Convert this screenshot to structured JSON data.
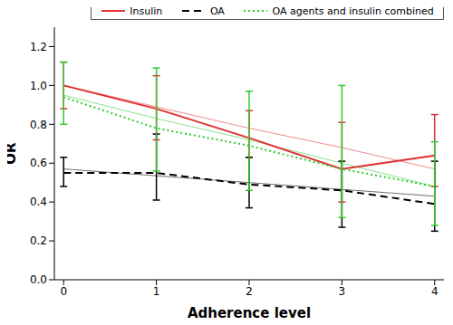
{
  "chart_data": {
    "type": "line",
    "x_label": "Adherence level",
    "y_label": "OR",
    "x": [
      0,
      1,
      2,
      3,
      4
    ],
    "xlim": [
      -0.1,
      4.1
    ],
    "xticks": [
      0,
      1,
      2,
      3,
      4
    ],
    "ylim": [
      0,
      1.3
    ],
    "yticks": [
      {
        "value": 0,
        "label": "0.0"
      },
      {
        "value": 0.2,
        "label": "0.2"
      },
      {
        "value": 0.4,
        "label": "0.4"
      },
      {
        "value": 0.6,
        "label": "0.6"
      },
      {
        "value": 0.8,
        "label": "0.8"
      },
      {
        "value": 1,
        "label": "1.0"
      },
      {
        "value": 1.2,
        "label": "1.2"
      }
    ],
    "legend": "top",
    "series": [
      {
        "name": "Insulin",
        "color": "#e03030",
        "line_style": "solid",
        "values": [
          1.0,
          0.88,
          0.73,
          0.57,
          0.64
        ],
        "ci": [
          [
            0.88,
            1.12
          ],
          [
            0.72,
            1.05
          ],
          [
            0.63,
            0.87
          ],
          [
            0.4,
            0.81
          ],
          [
            0.48,
            0.85
          ]
        ],
        "trend": [
          1.0,
          0.89,
          0.78,
          0.68,
          0.57
        ]
      },
      {
        "name": "OA",
        "color": "#000000",
        "line_style": "dashed",
        "values": [
          0.55,
          0.55,
          0.49,
          0.46,
          0.39
        ],
        "ci": [
          [
            0.48,
            0.63
          ],
          [
            0.41,
            0.75
          ],
          [
            0.37,
            0.63
          ],
          [
            0.27,
            0.61
          ],
          [
            0.25,
            0.61
          ]
        ],
        "trend": [
          0.57,
          0.535,
          0.5,
          0.465,
          0.43
        ]
      },
      {
        "name": "OA agents and insulin combined",
        "color": "#2ecc2e",
        "line_style": "dotted",
        "values": [
          0.94,
          0.78,
          0.69,
          0.57,
          0.48
        ],
        "ci": [
          [
            0.8,
            1.12
          ],
          [
            0.56,
            1.09
          ],
          [
            0.46,
            0.97
          ],
          [
            0.32,
            1.0
          ],
          [
            0.28,
            0.71
          ]
        ],
        "trend": [
          0.95,
          0.83,
          0.72,
          0.6,
          0.48
        ]
      }
    ]
  }
}
